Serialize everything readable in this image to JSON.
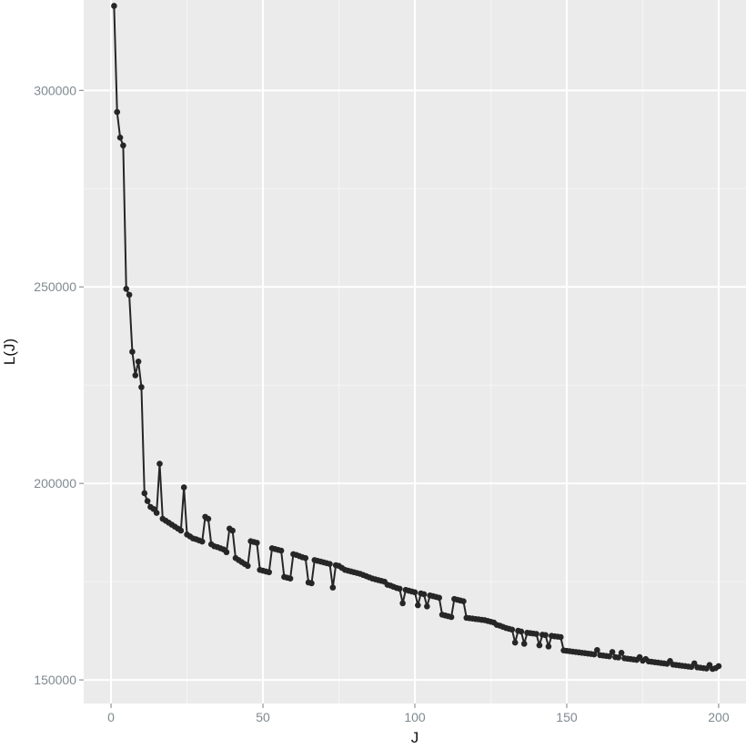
{
  "chart_data": {
    "type": "line",
    "title": "",
    "xlabel": "J",
    "ylabel": "L(J)",
    "xlim": [
      -9,
      209
    ],
    "ylim": [
      144000,
      323000
    ],
    "x_ticks": [
      0,
      50,
      100,
      150,
      200
    ],
    "x_tick_labels": [
      "0",
      "50",
      "100",
      "150",
      "200"
    ],
    "y_ticks": [
      150000,
      200000,
      250000,
      300000
    ],
    "y_tick_labels": [
      "150000",
      "200000",
      "250000",
      "300000"
    ],
    "grid": true,
    "legend": "none",
    "colors": {
      "panel_background": "#ebebeb",
      "major_grid": "#ffffff",
      "minor_grid": "#f5f5f5",
      "line": "#262626",
      "points": "#262626",
      "tick_labels": "#7f8a8f",
      "axis_title": "#111111"
    },
    "series": [
      {
        "points": [
          [
            1,
            321500
          ],
          [
            2,
            294500
          ],
          [
            3,
            288000
          ],
          [
            4,
            286000
          ],
          [
            5,
            249500
          ],
          [
            6,
            248000
          ],
          [
            7,
            233500
          ],
          [
            8,
            227500
          ],
          [
            9,
            231000
          ],
          [
            10,
            224500
          ],
          [
            11,
            197500
          ],
          [
            12,
            195500
          ],
          [
            13,
            194000
          ],
          [
            14,
            193500
          ],
          [
            15,
            192500
          ],
          [
            16,
            205000
          ],
          [
            17,
            191000
          ],
          [
            18,
            190500
          ],
          [
            19,
            190000
          ],
          [
            20,
            189500
          ],
          [
            21,
            189000
          ],
          [
            22,
            188500
          ],
          [
            23,
            188000
          ],
          [
            24,
            199000
          ],
          [
            25,
            187000
          ],
          [
            26,
            186500
          ],
          [
            27,
            186000
          ],
          [
            28,
            185800
          ],
          [
            29,
            185500
          ],
          [
            30,
            185200
          ],
          [
            31,
            191500
          ],
          [
            32,
            191000
          ],
          [
            33,
            184500
          ],
          [
            34,
            184000
          ],
          [
            35,
            183800
          ],
          [
            36,
            183500
          ],
          [
            37,
            183200
          ],
          [
            38,
            182500
          ],
          [
            39,
            188500
          ],
          [
            40,
            188000
          ],
          [
            41,
            181000
          ],
          [
            42,
            180500
          ],
          [
            43,
            180000
          ],
          [
            44,
            179500
          ],
          [
            45,
            179000
          ],
          [
            46,
            185300
          ],
          [
            47,
            185100
          ],
          [
            48,
            184900
          ],
          [
            49,
            178000
          ],
          [
            50,
            177800
          ],
          [
            51,
            177600
          ],
          [
            52,
            177400
          ],
          [
            53,
            183500
          ],
          [
            54,
            183300
          ],
          [
            55,
            183100
          ],
          [
            56,
            182900
          ],
          [
            57,
            176200
          ],
          [
            58,
            176000
          ],
          [
            59,
            175800
          ],
          [
            60,
            182000
          ],
          [
            61,
            181800
          ],
          [
            62,
            181500
          ],
          [
            63,
            181200
          ],
          [
            64,
            181000
          ],
          [
            65,
            174800
          ],
          [
            66,
            174600
          ],
          [
            67,
            180500
          ],
          [
            68,
            180300
          ],
          [
            69,
            180100
          ],
          [
            70,
            179900
          ],
          [
            71,
            179700
          ],
          [
            72,
            179500
          ],
          [
            73,
            173500
          ],
          [
            74,
            179200
          ],
          [
            75,
            179000
          ],
          [
            76,
            178500
          ],
          [
            77,
            178000
          ],
          [
            78,
            177800
          ],
          [
            79,
            177600
          ],
          [
            80,
            177400
          ],
          [
            81,
            177200
          ],
          [
            82,
            177000
          ],
          [
            83,
            176700
          ],
          [
            84,
            176400
          ],
          [
            85,
            176100
          ],
          [
            86,
            175800
          ],
          [
            87,
            175600
          ],
          [
            88,
            175400
          ],
          [
            89,
            175200
          ],
          [
            90,
            175000
          ],
          [
            91,
            174200
          ],
          [
            92,
            174000
          ],
          [
            93,
            173700
          ],
          [
            94,
            173400
          ],
          [
            95,
            173200
          ],
          [
            96,
            169500
          ],
          [
            97,
            172900
          ],
          [
            98,
            172700
          ],
          [
            99,
            172500
          ],
          [
            100,
            172300
          ],
          [
            101,
            169000
          ],
          [
            102,
            172000
          ],
          [
            103,
            171800
          ],
          [
            104,
            168700
          ],
          [
            105,
            171500
          ],
          [
            106,
            171300
          ],
          [
            107,
            171100
          ],
          [
            108,
            170900
          ],
          [
            109,
            166600
          ],
          [
            110,
            166400
          ],
          [
            111,
            166200
          ],
          [
            112,
            166000
          ],
          [
            113,
            170600
          ],
          [
            114,
            170400
          ],
          [
            115,
            170200
          ],
          [
            116,
            170000
          ],
          [
            117,
            165800
          ],
          [
            118,
            165700
          ],
          [
            119,
            165600
          ],
          [
            120,
            165500
          ],
          [
            121,
            165400
          ],
          [
            122,
            165300
          ],
          [
            123,
            165200
          ],
          [
            124,
            165000
          ],
          [
            125,
            164800
          ],
          [
            126,
            164600
          ],
          [
            127,
            164000
          ],
          [
            128,
            163800
          ],
          [
            129,
            163500
          ],
          [
            130,
            163200
          ],
          [
            131,
            163000
          ],
          [
            132,
            162800
          ],
          [
            133,
            159500
          ],
          [
            134,
            162500
          ],
          [
            135,
            162300
          ],
          [
            136,
            159200
          ],
          [
            137,
            162000
          ],
          [
            138,
            161900
          ],
          [
            139,
            161800
          ],
          [
            140,
            161700
          ],
          [
            141,
            158800
          ],
          [
            142,
            161500
          ],
          [
            143,
            161400
          ],
          [
            144,
            158500
          ],
          [
            145,
            161200
          ],
          [
            146,
            161100
          ],
          [
            147,
            161000
          ],
          [
            148,
            160900
          ],
          [
            149,
            157500
          ],
          [
            150,
            157400
          ],
          [
            151,
            157300
          ],
          [
            152,
            157200
          ],
          [
            153,
            157100
          ],
          [
            154,
            157000
          ],
          [
            155,
            156900
          ],
          [
            156,
            156800
          ],
          [
            157,
            156700
          ],
          [
            158,
            156600
          ],
          [
            159,
            156500
          ],
          [
            160,
            157600
          ],
          [
            161,
            156300
          ],
          [
            162,
            156200
          ],
          [
            163,
            156100
          ],
          [
            164,
            156000
          ],
          [
            165,
            157100
          ],
          [
            166,
            155800
          ],
          [
            167,
            155700
          ],
          [
            168,
            156900
          ],
          [
            169,
            155500
          ],
          [
            170,
            155400
          ],
          [
            171,
            155300
          ],
          [
            172,
            155200
          ],
          [
            173,
            155100
          ],
          [
            174,
            155800
          ],
          [
            175,
            154900
          ],
          [
            176,
            155300
          ],
          [
            177,
            154700
          ],
          [
            178,
            154600
          ],
          [
            179,
            154500
          ],
          [
            180,
            154400
          ],
          [
            181,
            154300
          ],
          [
            182,
            154200
          ],
          [
            183,
            154100
          ],
          [
            184,
            154800
          ],
          [
            185,
            153900
          ],
          [
            186,
            153800
          ],
          [
            187,
            153700
          ],
          [
            188,
            153600
          ],
          [
            189,
            153500
          ],
          [
            190,
            153400
          ],
          [
            191,
            153300
          ],
          [
            192,
            154200
          ],
          [
            193,
            153200
          ],
          [
            194,
            153100
          ],
          [
            195,
            153000
          ],
          [
            196,
            152900
          ],
          [
            197,
            153800
          ],
          [
            198,
            152800
          ],
          [
            199,
            153000
          ],
          [
            200,
            153500
          ]
        ]
      }
    ]
  }
}
